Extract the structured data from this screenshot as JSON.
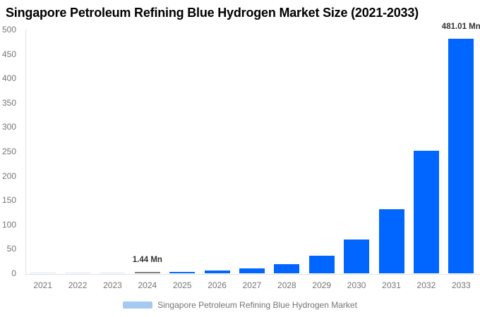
{
  "title": "Singapore Petroleum Refining Blue Hydrogen Market Size (2021-2033)",
  "legend": {
    "label": "Singapore Petroleum Refining Blue Hydrogen Market"
  },
  "colors": {
    "bar_blue": "#0066ff",
    "bar_gray": "#7f7f7f",
    "bar_faint_blue": "#d6e4f4",
    "legend_swatch": "#a6c9f2",
    "axis_line": "#e3e3e3",
    "tick_text": "#757575",
    "annotation_text": "#333333",
    "title_text": "#000000"
  },
  "chart_data": {
    "type": "bar",
    "title": "Singapore Petroleum Refining Blue Hydrogen Market Size (2021-2033)",
    "xlabel": "",
    "ylabel": "",
    "unit": "Mn",
    "ylim": [
      0,
      500
    ],
    "yticks": [
      0,
      50,
      100,
      150,
      200,
      250,
      300,
      350,
      400,
      450,
      500
    ],
    "grid": false,
    "legend_position": "bottom",
    "series_name": "Singapore Petroleum Refining Blue Hydrogen Market",
    "categories": [
      "2021",
      "2022",
      "2023",
      "2024",
      "2025",
      "2026",
      "2027",
      "2028",
      "2029",
      "2030",
      "2031",
      "2032",
      "2033"
    ],
    "values": [
      0.2,
      0.4,
      0.8,
      1.44,
      2.7,
      5.2,
      10,
      19,
      36.3,
      69.3,
      132.1,
      252,
      481.01
    ],
    "bar_colors": [
      "#d6e4f4",
      "#d6e4f4",
      "#d6e4f4",
      "#7f7f7f",
      "#0066ff",
      "#0066ff",
      "#0066ff",
      "#0066ff",
      "#0066ff",
      "#0066ff",
      "#0066ff",
      "#0066ff",
      "#0066ff"
    ],
    "labeled_points": [
      {
        "category": "2024",
        "label": "1.44 Mn"
      },
      {
        "category": "2033",
        "label": "481.01 Mn"
      }
    ]
  }
}
